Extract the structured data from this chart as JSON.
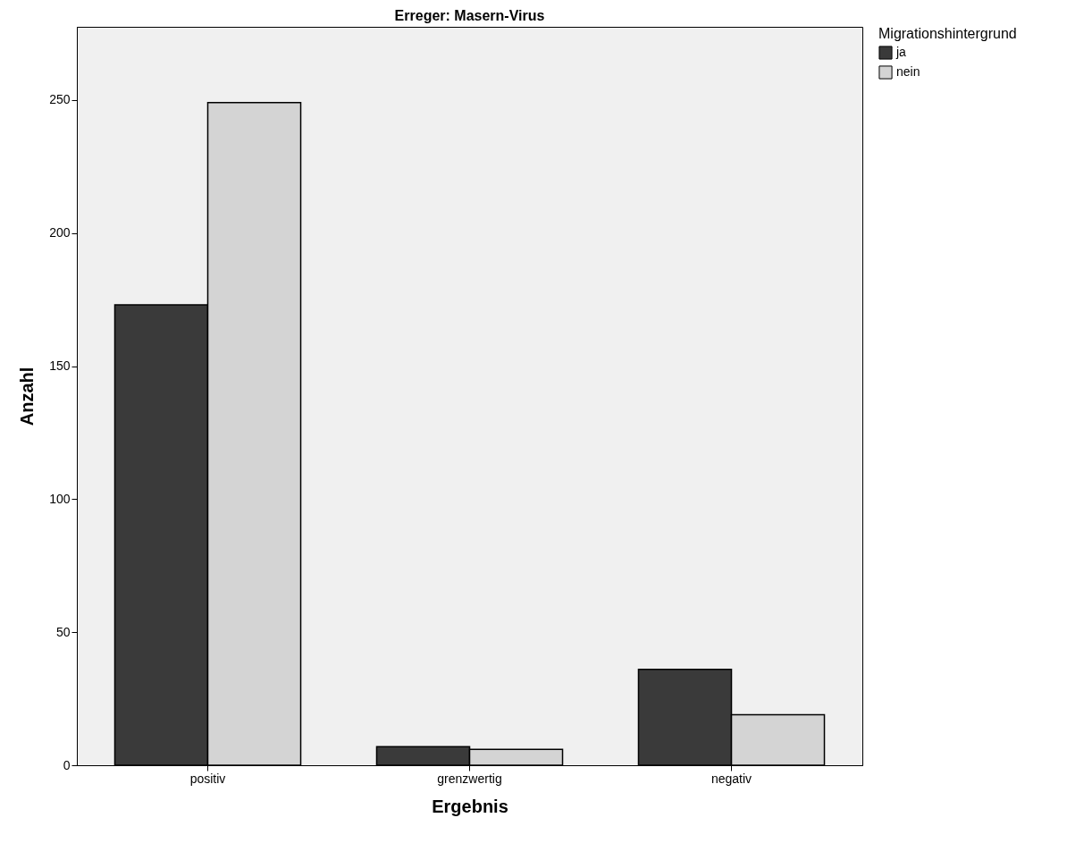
{
  "chart_data": {
    "type": "bar",
    "title": "Erreger: Masern-Virus",
    "xlabel": "Ergebnis",
    "ylabel": "Anzahl",
    "legend_title": "Migrationshintergrund",
    "categories": [
      "positiv",
      "grenzwertig",
      "negativ"
    ],
    "series": [
      {
        "name": "ja",
        "color": "#3a3a3a",
        "values": [
          173,
          7,
          36
        ]
      },
      {
        "name": "nein",
        "color": "#d4d4d4",
        "values": [
          249,
          6,
          19
        ]
      }
    ],
    "ylim": [
      0,
      277.5
    ],
    "yticks": [
      0,
      50,
      100,
      150,
      200,
      250
    ],
    "grid": false,
    "legend": "top right"
  }
}
